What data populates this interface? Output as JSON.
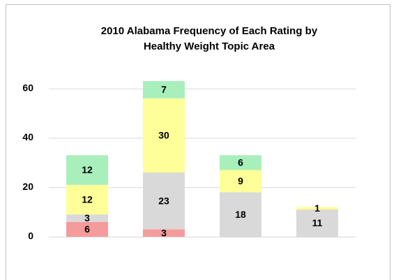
{
  "chart_data": {
    "type": "bar",
    "stacked": true,
    "title": [
      "2010 Alabama Frequency of Each Rating by",
      "Healthy Weight Topic Area"
    ],
    "categories": [
      null,
      null,
      null,
      null
    ],
    "series": [
      {
        "color": "#f59b9b",
        "values": [
          6,
          3,
          null,
          null
        ]
      },
      {
        "color": "#d9d9d9",
        "values": [
          3,
          23,
          18,
          11
        ]
      },
      {
        "color": "#ffff99",
        "values": [
          12,
          30,
          9,
          1
        ]
      },
      {
        "color": "#a8efbc",
        "values": [
          12,
          7,
          6,
          null
        ]
      }
    ],
    "ylim": [
      0,
      65
    ],
    "yticks": [
      0,
      20,
      40,
      60
    ],
    "grid": true
  }
}
